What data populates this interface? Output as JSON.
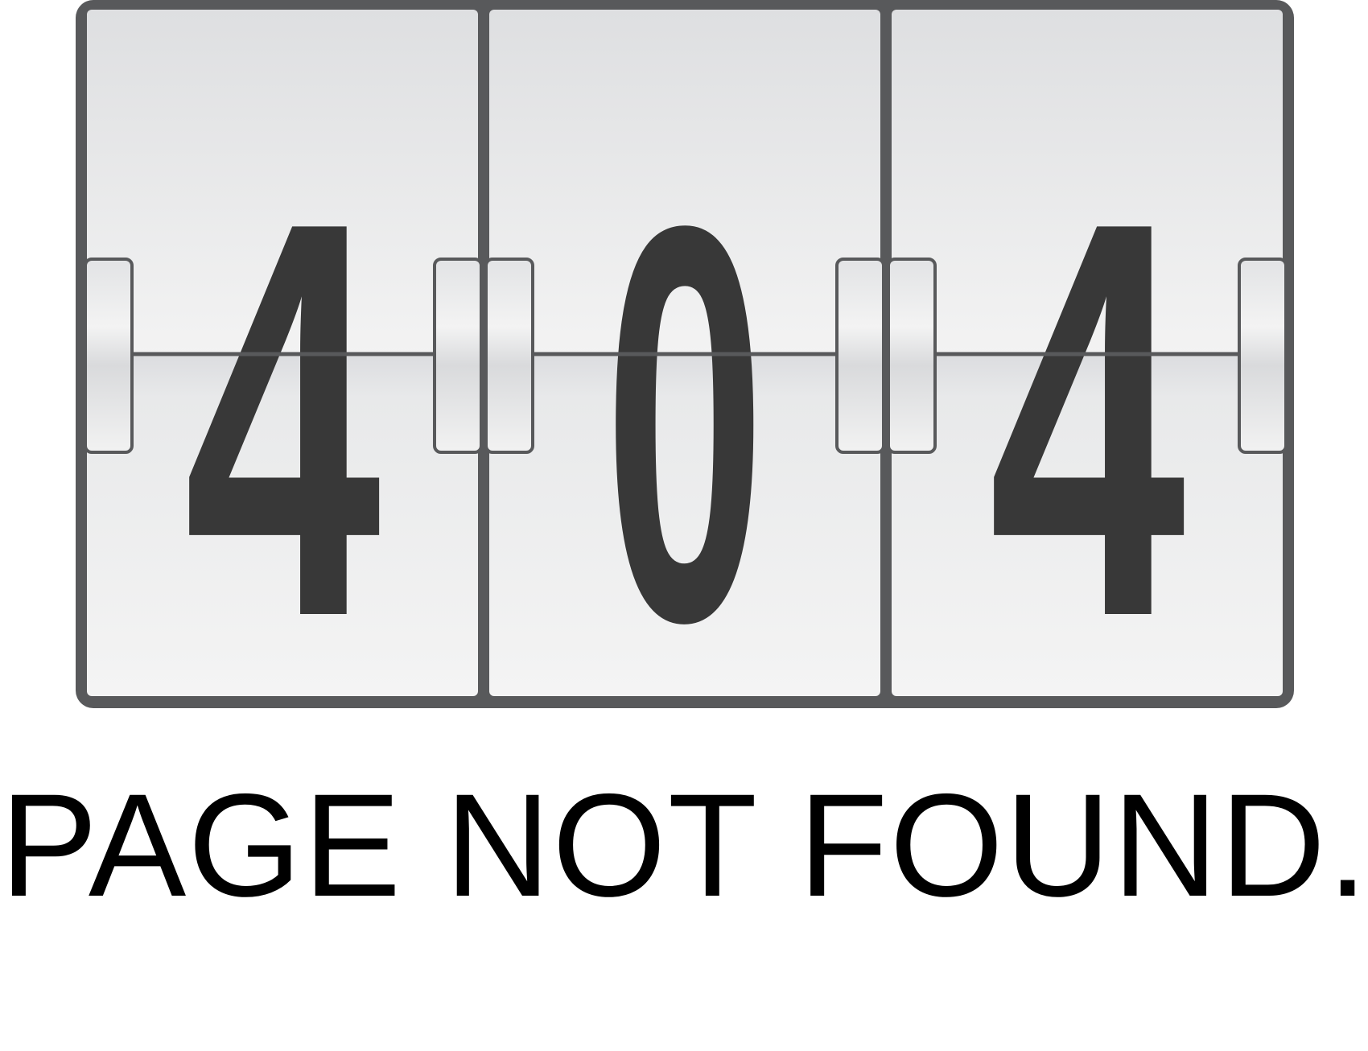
{
  "error_display": {
    "digits": [
      "4",
      "0",
      "4"
    ]
  },
  "message": {
    "headline": "PAGE NOT FOUND."
  },
  "colors": {
    "frame": "#58595b",
    "card_top": "#e2e3e5",
    "card_bottom": "#f4f4f4",
    "digit": "#383838",
    "text": "#000000",
    "background": "#ffffff"
  }
}
